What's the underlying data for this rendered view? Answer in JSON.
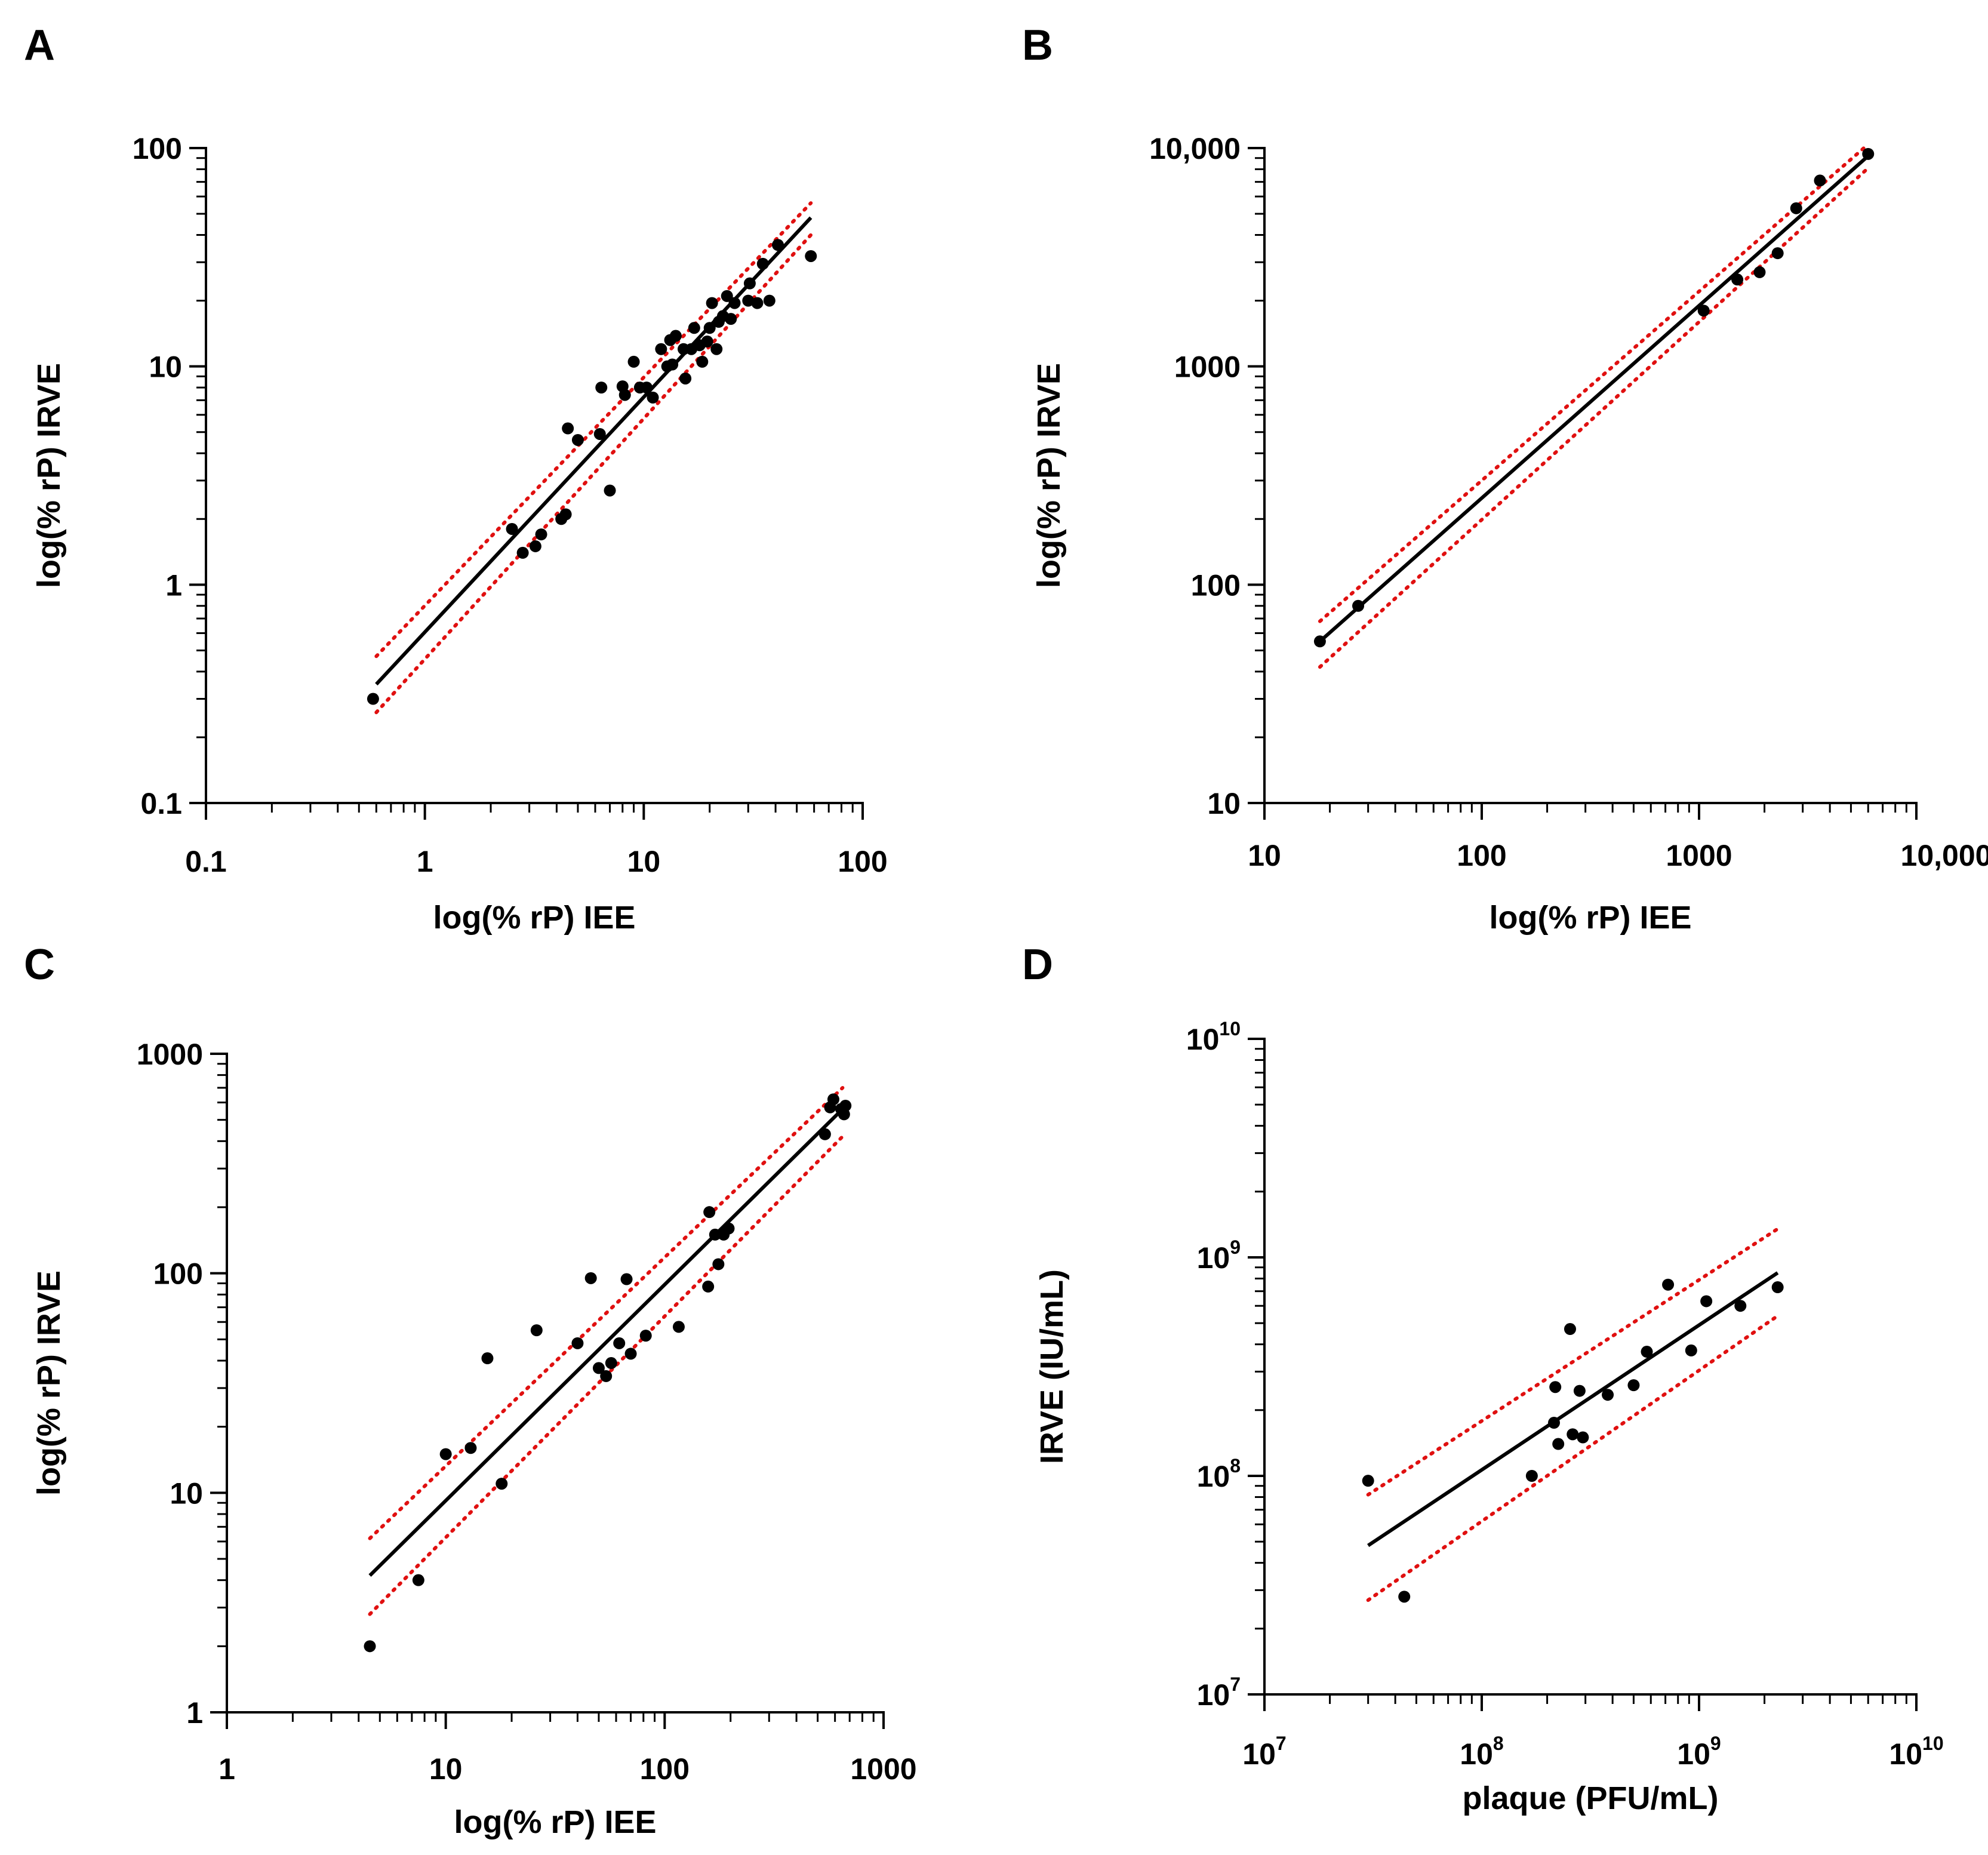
{
  "chart_data": [
    {
      "panel": "A",
      "type": "scatter",
      "scale": "log-log",
      "xlabel": "log(% rP) IEE",
      "ylabel": "log(% rP) IRVE",
      "xlim": [
        0.1,
        100
      ],
      "ylim": [
        0.1,
        100
      ],
      "xticks": [
        {
          "v": 0.1,
          "label": "0.1"
        },
        {
          "v": 1,
          "label": "1"
        },
        {
          "v": 10,
          "label": "10"
        },
        {
          "v": 100,
          "label": "100"
        }
      ],
      "yticks": [
        {
          "v": 0.1,
          "label": "0.1"
        },
        {
          "v": 1,
          "label": "1"
        },
        {
          "v": 10,
          "label": "10"
        },
        {
          "v": 100,
          "label": "100"
        }
      ],
      "fit": {
        "x1": 0.6,
        "y1": 0.35,
        "x2": 58,
        "y2": 48
      },
      "ci_upper": {
        "x1": 0.6,
        "y1": 0.47,
        "x2": 58,
        "y2": 56
      },
      "ci_lower": {
        "x1": 0.6,
        "y1": 0.26,
        "x2": 58,
        "y2": 40
      },
      "points": [
        [
          0.58,
          0.3
        ],
        [
          2.5,
          1.8
        ],
        [
          2.8,
          1.4
        ],
        [
          3.2,
          1.5
        ],
        [
          3.4,
          1.7
        ],
        [
          4.2,
          2.0
        ],
        [
          4.4,
          2.1
        ],
        [
          4.5,
          5.2
        ],
        [
          5.0,
          4.6
        ],
        [
          6.3,
          4.9
        ],
        [
          6.4,
          8.0
        ],
        [
          7.0,
          2.7
        ],
        [
          8.0,
          8.1
        ],
        [
          8.2,
          7.4
        ],
        [
          9.0,
          10.5
        ],
        [
          9.6,
          8.0
        ],
        [
          10.3,
          8.0
        ],
        [
          11.0,
          7.2
        ],
        [
          12.0,
          12.0
        ],
        [
          12.8,
          10.0
        ],
        [
          13.2,
          13.2
        ],
        [
          13.5,
          10.2
        ],
        [
          14.0,
          13.8
        ],
        [
          15.5,
          8.8
        ],
        [
          15.2,
          12.0
        ],
        [
          16.5,
          12.0
        ],
        [
          17.0,
          15.0
        ],
        [
          18.0,
          12.5
        ],
        [
          18.5,
          10.5
        ],
        [
          19.5,
          13.0
        ],
        [
          20.0,
          15.0
        ],
        [
          20.5,
          19.5
        ],
        [
          21.5,
          12.0
        ],
        [
          22.0,
          16.0
        ],
        [
          23.0,
          17.0
        ],
        [
          24.0,
          21.0
        ],
        [
          25.0,
          16.5
        ],
        [
          26.0,
          19.5
        ],
        [
          30.0,
          20.0
        ],
        [
          30.5,
          24.0
        ],
        [
          33.0,
          19.5
        ],
        [
          35.0,
          29.5
        ],
        [
          37.5,
          20.0
        ],
        [
          41.0,
          36.0
        ],
        [
          58.0,
          32.0
        ]
      ]
    },
    {
      "panel": "B",
      "type": "scatter",
      "scale": "log-log",
      "xlabel": "log(% rP) IEE",
      "ylabel": "log(% rP) IRVE",
      "xlim": [
        10,
        10000
      ],
      "ylim": [
        10,
        10000
      ],
      "xticks": [
        {
          "v": 10,
          "label": "10"
        },
        {
          "v": 100,
          "label": "100"
        },
        {
          "v": 1000,
          "label": "1000"
        },
        {
          "v": 10000,
          "label": "10,000"
        }
      ],
      "yticks": [
        {
          "v": 10,
          "label": "10"
        },
        {
          "v": 100,
          "label": "100"
        },
        {
          "v": 1000,
          "label": "1000"
        },
        {
          "v": 10000,
          "label": "10,000"
        }
      ],
      "fit": {
        "x1": 18,
        "y1": 55,
        "x2": 6000,
        "y2": 9200
      },
      "ci_upper": {
        "x1": 18,
        "y1": 68,
        "x2": 6000,
        "y2": 10400
      },
      "ci_lower": {
        "x1": 18,
        "y1": 42,
        "x2": 6000,
        "y2": 8100
      },
      "points": [
        [
          18,
          55
        ],
        [
          27,
          80
        ],
        [
          1050,
          1800
        ],
        [
          1500,
          2500
        ],
        [
          1900,
          2700
        ],
        [
          2300,
          3300
        ],
        [
          2800,
          5300
        ],
        [
          3600,
          7100
        ],
        [
          6000,
          9400
        ]
      ]
    },
    {
      "panel": "C",
      "type": "scatter",
      "scale": "log-log",
      "xlabel": "log(% rP) IEE",
      "ylabel": "log(% rP) IRVE",
      "xlim": [
        1,
        1000
      ],
      "ylim": [
        1,
        1000
      ],
      "xticks": [
        {
          "v": 1,
          "label": "1"
        },
        {
          "v": 10,
          "label": "10"
        },
        {
          "v": 100,
          "label": "100"
        },
        {
          "v": 1000,
          "label": "1000"
        }
      ],
      "yticks": [
        {
          "v": 1,
          "label": "1"
        },
        {
          "v": 10,
          "label": "10"
        },
        {
          "v": 100,
          "label": "100"
        },
        {
          "v": 1000,
          "label": "1000"
        }
      ],
      "fit": {
        "x1": 4.5,
        "y1": 4.2,
        "x2": 650,
        "y2": 560
      },
      "ci_upper": {
        "x1": 4.5,
        "y1": 6.2,
        "x2": 650,
        "y2": 700
      },
      "ci_lower": {
        "x1": 4.5,
        "y1": 2.8,
        "x2": 650,
        "y2": 420
      },
      "points": [
        [
          4.5,
          2.0
        ],
        [
          7.5,
          4.0
        ],
        [
          10,
          15
        ],
        [
          13,
          16
        ],
        [
          15.5,
          41
        ],
        [
          18,
          11
        ],
        [
          26,
          55
        ],
        [
          40,
          48
        ],
        [
          46,
          95
        ],
        [
          50,
          37
        ],
        [
          54,
          34
        ],
        [
          57,
          39
        ],
        [
          62,
          48
        ],
        [
          67,
          94
        ],
        [
          70,
          43
        ],
        [
          82,
          52
        ],
        [
          116,
          57
        ],
        [
          158,
          87
        ],
        [
          160,
          190
        ],
        [
          170,
          150
        ],
        [
          176,
          110
        ],
        [
          186,
          150
        ],
        [
          196,
          160
        ],
        [
          540,
          430
        ],
        [
          570,
          570
        ],
        [
          590,
          620
        ],
        [
          640,
          560
        ],
        [
          660,
          530
        ],
        [
          670,
          580
        ]
      ]
    },
    {
      "panel": "D",
      "type": "scatter",
      "scale": "log-log",
      "xlabel": "plaque (PFU/mL)",
      "ylabel": "IRVE (IU/mL)",
      "xlim": [
        10000000,
        10000000000
      ],
      "ylim": [
        10000000,
        10000000000
      ],
      "xticks": [
        {
          "v": 10000000,
          "base": "10",
          "exp": "7"
        },
        {
          "v": 100000000,
          "base": "10",
          "exp": "8"
        },
        {
          "v": 1000000000,
          "base": "10",
          "exp": "9"
        },
        {
          "v": 10000000000,
          "base": "10",
          "exp": "10"
        }
      ],
      "yticks": [
        {
          "v": 10000000,
          "base": "10",
          "exp": "7"
        },
        {
          "v": 100000000,
          "base": "10",
          "exp": "8"
        },
        {
          "v": 1000000000,
          "base": "10",
          "exp": "9"
        },
        {
          "v": 10000000000,
          "base": "10",
          "exp": "10"
        }
      ],
      "fit": {
        "x1": 30000000,
        "y1": 48000000,
        "x2": 2300000000,
        "y2": 850000000
      },
      "ci_upper": {
        "x1": 30000000,
        "y1": 82000000,
        "x2": 2300000000,
        "y2": 1350000000
      },
      "ci_lower": {
        "x1": 30000000,
        "y1": 27000000,
        "x2": 2300000000,
        "y2": 540000000
      },
      "points": [
        [
          30000000,
          95000000
        ],
        [
          44000000,
          28000000
        ],
        [
          170000000,
          100000000
        ],
        [
          215000000,
          175000000
        ],
        [
          218000000,
          255000000
        ],
        [
          225000000,
          140000000
        ],
        [
          255000000,
          470000000
        ],
        [
          262000000,
          155000000
        ],
        [
          282000000,
          245000000
        ],
        [
          292000000,
          150000000
        ],
        [
          380000000,
          235000000
        ],
        [
          500000000,
          260000000
        ],
        [
          575000000,
          370000000
        ],
        [
          720000000,
          750000000
        ],
        [
          920000000,
          375000000
        ],
        [
          1080000000,
          630000000
        ],
        [
          1550000000,
          600000000
        ],
        [
          2300000000,
          730000000
        ]
      ]
    }
  ]
}
